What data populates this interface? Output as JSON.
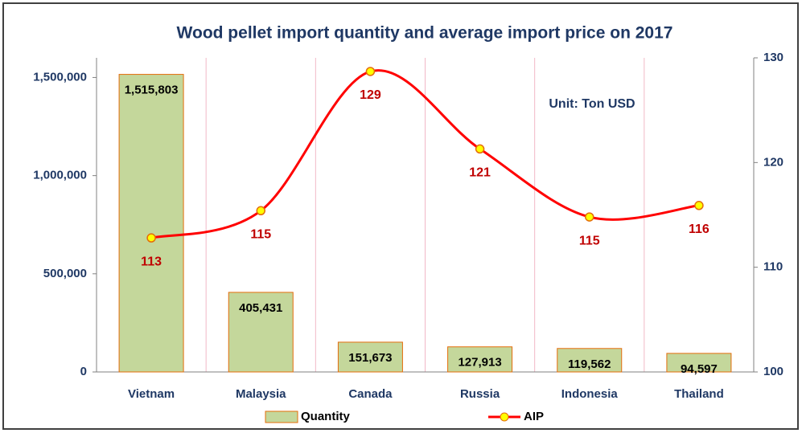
{
  "chart_data": {
    "type": "bar-line",
    "title": "Wood pellet import quantity and average import price on 2017",
    "annotation": "Unit: Ton USD",
    "categories": [
      "Vietnam",
      "Malaysia",
      "Canada",
      "Russia",
      "Indonesia",
      "Thailand"
    ],
    "series": [
      {
        "name": "Quantity",
        "type": "bar",
        "color": "#c4d79b",
        "edge_color": "#e46c0a",
        "values": [
          1515803,
          405431,
          151673,
          127913,
          119562,
          94597
        ],
        "value_labels": [
          "1,515,803",
          "405,431",
          "151,673",
          "127,913",
          "119,562",
          "94,597"
        ]
      },
      {
        "name": "AIP",
        "type": "line",
        "axis": "y2",
        "color": "#ff0000",
        "marker_color": "#ffff00",
        "values": [
          112.8,
          115.4,
          128.7,
          121.3,
          114.8,
          115.9
        ],
        "value_labels": [
          "113",
          "115",
          "129",
          "121",
          "115",
          "116"
        ]
      }
    ],
    "ylim": [
      0,
      1600000
    ],
    "yticks": [
      0,
      {
        "value": 500000,
        "label": "500,000"
      },
      {
        "value": 1000000,
        "label": "1,000,000"
      },
      {
        "value": 1500000,
        "label": "1,500,000"
      }
    ],
    "y2lim": [
      100,
      130
    ],
    "y2ticks": [
      100,
      110,
      120,
      130
    ]
  }
}
